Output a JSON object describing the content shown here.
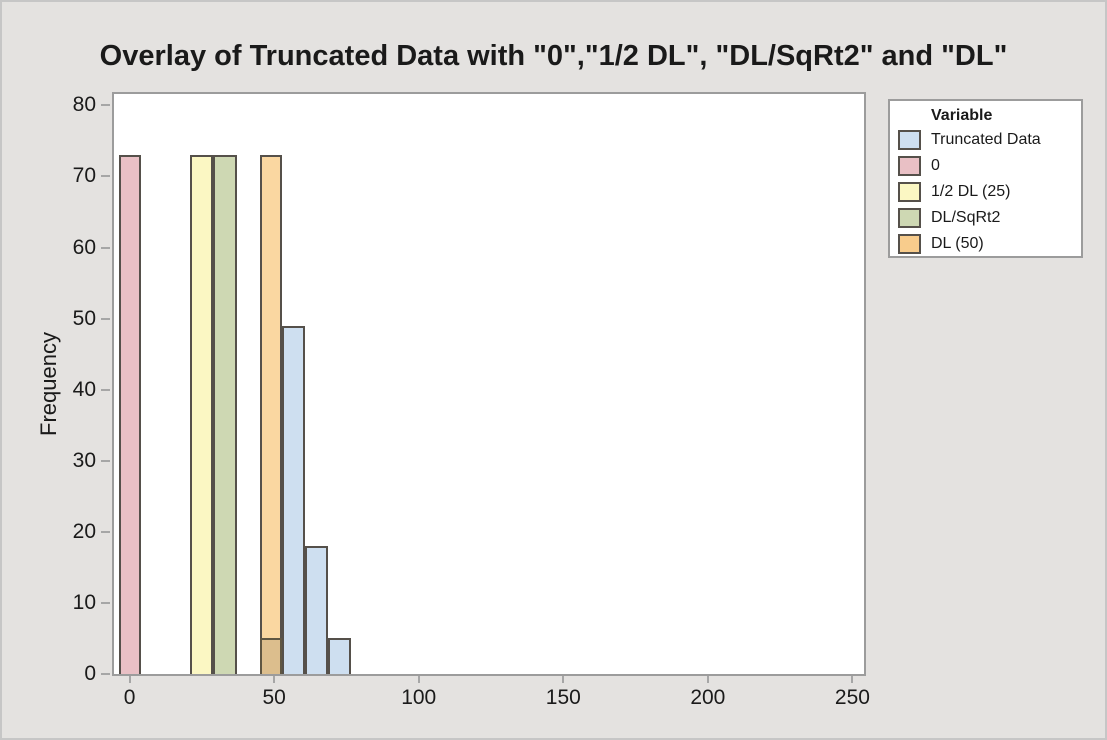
{
  "colors": {
    "background": "#E4E2E0",
    "plot_background": "#FFFFFF",
    "frame": "#9C9C9C",
    "tick": "#A6A6A6",
    "text": "#1A1A1A",
    "bar_border": "#55504A"
  },
  "chart_data": {
    "type": "bar",
    "subtype": "overlaid-histogram",
    "title": "Overlay of Truncated Data with \"0\",\"1/2 DL\", \"DL/SqRt2\" and \"DL\"",
    "xlabel": "",
    "ylabel": "Frequency",
    "xlim": [
      -5.4,
      254.0
    ],
    "ylim": [
      0,
      81.6
    ],
    "x_ticks": [
      0,
      50,
      100,
      150,
      200,
      250
    ],
    "y_ticks": [
      0,
      10,
      20,
      30,
      40,
      50,
      60,
      70,
      80
    ],
    "grid": false,
    "legend_position": "outside-upper-right",
    "series": [
      {
        "name": "Truncated Data",
        "color": "#CEDFF0",
        "bars": [
          {
            "x0": 52.7,
            "x1": 60.7,
            "freq": 49
          },
          {
            "x0": 60.7,
            "x1": 68.6,
            "freq": 18
          },
          {
            "x0": 68.6,
            "x1": 76.6,
            "freq": 5
          }
        ]
      },
      {
        "name": "0",
        "color": "#E9C0C5",
        "bars": [
          {
            "x0": -3.7,
            "x1": 4.0,
            "freq": 73
          }
        ]
      },
      {
        "name": "1/2 DL (25)",
        "color": "#FBF7C3",
        "bars": [
          {
            "x0": 20.8,
            "x1": 28.8,
            "freq": 73
          }
        ]
      },
      {
        "name": "DL/SqRt2",
        "color": "#CED8B3",
        "bars": [
          {
            "x0": 28.8,
            "x1": 37.0,
            "freq": 73
          }
        ]
      },
      {
        "name": "DL (50)",
        "color": "#FAD7A1",
        "bars": [
          {
            "x0": 45.0,
            "x1": 52.7,
            "freq": 73
          }
        ]
      }
    ],
    "overlap_bars": [
      {
        "name": "Truncated Data over DL (50)",
        "x0": 45.0,
        "x1": 52.7,
        "freq": 5,
        "color": "#DCBE8D",
        "border_color": "#5F5642"
      }
    ]
  },
  "legend": {
    "title": "Variable",
    "items": [
      {
        "label": "Truncated Data",
        "color": "#CEDFF0"
      },
      {
        "label": "0",
        "color": "#E9C0C5"
      },
      {
        "label": "1/2 DL (25)",
        "color": "#FBF7C3"
      },
      {
        "label": "DL/SqRt2",
        "color": "#CED8B3"
      },
      {
        "label": "DL (50)",
        "color": "#F8CC8C"
      }
    ]
  }
}
